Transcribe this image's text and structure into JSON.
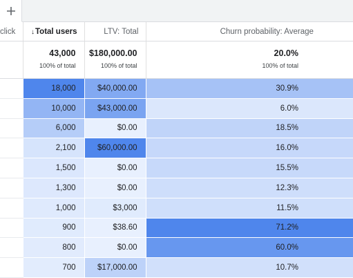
{
  "toolbar": {
    "add_tab_icon": "plus-icon"
  },
  "table": {
    "columns": [
      {
        "label": "click"
      },
      {
        "label": "Total users",
        "sort": "↓"
      },
      {
        "label": "LTV: Total"
      },
      {
        "label": "Churn probability: Average"
      }
    ],
    "totals": [
      {
        "value": "43,000",
        "sub": "100% of total"
      },
      {
        "value": "$180,000.00",
        "sub": "100% of total"
      },
      {
        "value": "20.0%",
        "sub": "100% of total"
      }
    ],
    "rows": [
      {
        "users": "18,000",
        "ltv": "$40,000.00",
        "churn": "30.9%",
        "users_level": 1.0,
        "ltv_level": 0.667,
        "churn_level": 0.434
      },
      {
        "users": "10,000",
        "ltv": "$43,000.00",
        "churn": "6.0%",
        "users_level": 0.556,
        "ltv_level": 0.717,
        "churn_level": 0.084
      },
      {
        "users": "6,000",
        "ltv": "$0.00",
        "churn": "18.5%",
        "users_level": 0.333,
        "ltv_level": 0.0,
        "churn_level": 0.26
      },
      {
        "users": "2,100",
        "ltv": "$60,000.00",
        "churn": "16.0%",
        "users_level": 0.117,
        "ltv_level": 1.0,
        "churn_level": 0.225
      },
      {
        "users": "1,500",
        "ltv": "$0.00",
        "churn": "15.5%",
        "users_level": 0.083,
        "ltv_level": 0.0,
        "churn_level": 0.218
      },
      {
        "users": "1,300",
        "ltv": "$0.00",
        "churn": "12.3%",
        "users_level": 0.072,
        "ltv_level": 0.0,
        "churn_level": 0.173
      },
      {
        "users": "1,000",
        "ltv": "$3,000",
        "churn": "11.5%",
        "users_level": 0.056,
        "ltv_level": 0.05,
        "churn_level": 0.162
      },
      {
        "users": "900",
        "ltv": "$38.60",
        "churn": "71.2%",
        "users_level": 0.05,
        "ltv_level": 0.001,
        "churn_level": 1.0
      },
      {
        "users": "800",
        "ltv": "$0.00",
        "churn": "60.0%",
        "users_level": 0.044,
        "ltv_level": 0.0,
        "churn_level": 0.843
      },
      {
        "users": "700",
        "ltv": "$17,000.00",
        "churn": "10.7%",
        "users_level": 0.039,
        "ltv_level": 0.283,
        "churn_level": 0.15
      }
    ]
  },
  "colors": {
    "heat_low": "#e8f0fe",
    "heat_high": "#4f86ec",
    "header_bg": "#f1f3f4",
    "border": "#dadce0"
  }
}
